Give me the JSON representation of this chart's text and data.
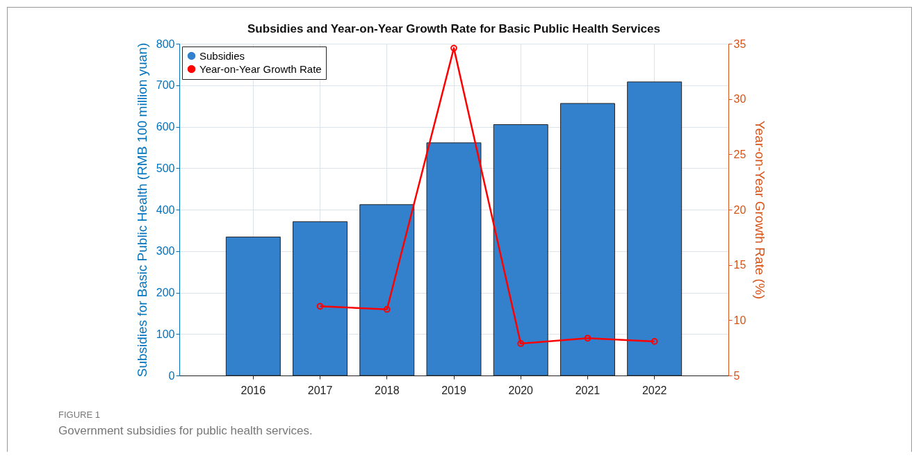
{
  "chart_data": {
    "type": "bar",
    "title": "Subsidies and Year-on-Year Growth Rate for Basic Public Health Services",
    "categories": [
      "2016",
      "2017",
      "2018",
      "2019",
      "2020",
      "2021",
      "2022"
    ],
    "series": [
      {
        "name": "Subsidies",
        "color": "#3380cc",
        "values": [
          334,
          371,
          412,
          561,
          605,
          656,
          708
        ]
      },
      {
        "name": "Year-on-Year Growth Rate",
        "type": "line",
        "axis": "y2",
        "color": "#ff0000",
        "values": [
          null,
          11.26,
          10.98,
          34.6,
          7.89,
          8.37,
          8.08
        ]
      }
    ],
    "ylabel": "Subsidies for Basic Public Health (RMB 100 million yuan)",
    "y2label": "Year-on-Year Growth Rate (%)",
    "ylim": [
      0,
      800
    ],
    "yticks": [
      0,
      100,
      200,
      300,
      400,
      500,
      600,
      700,
      800
    ],
    "y2lim": [
      5,
      35
    ],
    "y2ticks": [
      5,
      10,
      15,
      20,
      25,
      30,
      35
    ],
    "grid": true,
    "legend": "top left",
    "marker": "circle",
    "line_style": "solid",
    "annotations": [
      "FIGURE 1",
      "Government subsidies for public health services."
    ]
  }
}
